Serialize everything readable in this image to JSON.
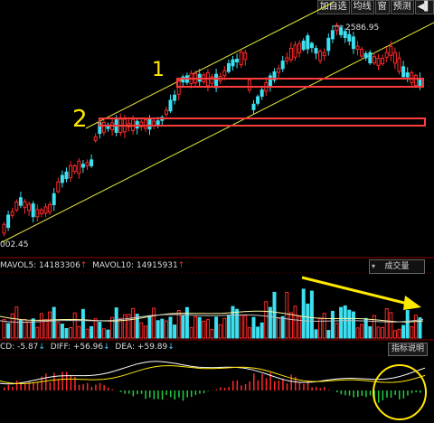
{
  "toolbar": {
    "add_watch": "加自选",
    "ma_lines": "均线",
    "window": "窗",
    "alert": "预测",
    "back_icon": "back-icon"
  },
  "price_chart": {
    "high_label": "2586.95",
    "low_label": "002.45",
    "annotation_1": "1",
    "annotation_2": "2"
  },
  "volume_panel": {
    "mavol5_label": "MAVOL5: 14183306",
    "mavol10_label": "MAVOL10: 14915931",
    "selector_value": "成交量"
  },
  "macd_panel": {
    "macd_label": "CD: -5.87",
    "diff_label": "DIFF: +56.96",
    "dea_label": "DEA: +59.89",
    "indicator_button": "指标说明"
  },
  "colors": {
    "up": "#ff2a2a",
    "down": "#3ce0f0",
    "annotation": "#ffe800",
    "box": "#ff3c3c"
  }
}
